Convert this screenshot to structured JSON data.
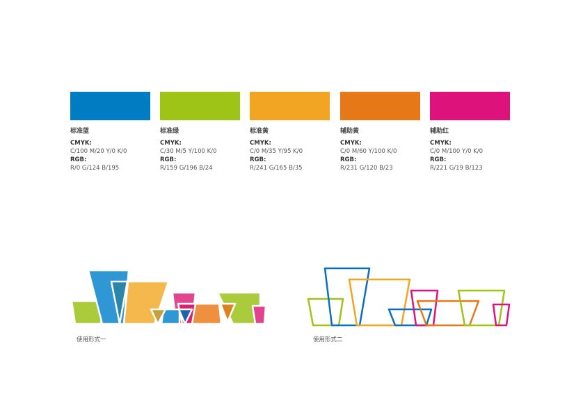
{
  "palette": [
    {
      "name": "标准蓝",
      "cmyk_label": "CMYK:",
      "cmyk": "C/100  M/20  Y/0  K/0",
      "rgb_label": "RGB:",
      "rgb": "R/0  G/124  B/195",
      "color": "#007CC3"
    },
    {
      "name": "标准绿",
      "cmyk_label": "CMYK:",
      "cmyk": "C/30  M/5  Y/100  K/0",
      "rgb_label": "RGB:",
      "rgb": "R/159  G/196  B/24",
      "color": "#9FC418"
    },
    {
      "name": "标准黄",
      "cmyk_label": "CMYK:",
      "cmyk": "C/0  M/35  Y/95  K/0",
      "rgb_label": "RGB:",
      "rgb": "R/241  G/165  B/35",
      "color": "#F1A523"
    },
    {
      "name": "辅助黄",
      "cmyk_label": "CMYK:",
      "cmyk": "C/0  M/60  Y/100  K/0",
      "rgb_label": "RGB:",
      "rgb": "R/231  G/120  B/23",
      "color": "#E77817"
    },
    {
      "name": "辅助红",
      "cmyk_label": "CMYK:",
      "cmyk": "C/0  M/100  Y/0  K/0",
      "rgb_label": "RGB:",
      "rgb": "R/221  G/19  B/123",
      "color": "#DD137B"
    }
  ],
  "usage": {
    "form_one_caption": "使用形式一",
    "form_two_caption": "使用形式二"
  }
}
